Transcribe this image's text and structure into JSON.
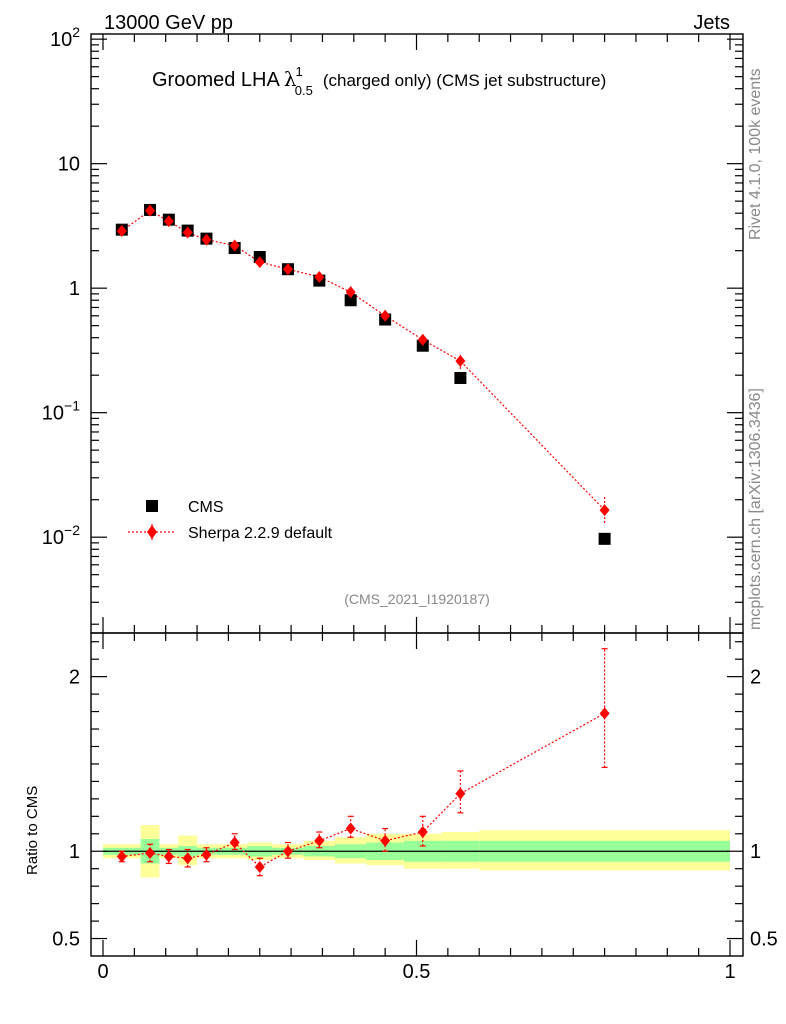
{
  "header": {
    "left": "13000 GeV pp",
    "right": "Jets"
  },
  "side_labels": {
    "rivet": "Rivet 4.1.0,  100k events",
    "mcplots": "mcplots.cern.ch [arXiv:1306.3436]"
  },
  "plot_title": {
    "main": "Groomed LHA",
    "lambda": "λ",
    "sup": "1",
    "sub": "0.5",
    "rest": "(charged only) (CMS jet substructure)"
  },
  "analysis_id": "(CMS_2021_I1920187)",
  "legend": {
    "cms": "CMS",
    "sherpa": "Sherpa 2.2.9 default"
  },
  "colors": {
    "cms": "#000000",
    "sherpa": "#ff0000",
    "band_outer": "#ffff99",
    "band_inner": "#99ff99"
  },
  "chart_data": [
    {
      "type": "scatter",
      "name": "main",
      "yscale": "log",
      "xlim": [
        -0.02,
        1.02
      ],
      "ylim": [
        0.0017,
        110
      ],
      "ytick_labels": [
        {
          "value": 100,
          "base": "10",
          "exp": "2"
        },
        {
          "value": 10,
          "base": "10",
          "exp": ""
        },
        {
          "value": 1,
          "base": "1",
          "exp": ""
        },
        {
          "value": 0.1,
          "base": "10",
          "exp": "−1"
        },
        {
          "value": 0.01,
          "base": "10",
          "exp": "−2"
        }
      ],
      "x": [
        0.03,
        0.075,
        0.105,
        0.135,
        0.165,
        0.21,
        0.25,
        0.295,
        0.345,
        0.395,
        0.45,
        0.51,
        0.57,
        0.8
      ],
      "series": [
        {
          "name": "CMS",
          "values": [
            2.95,
            4.25,
            3.55,
            2.9,
            2.5,
            2.1,
            1.78,
            1.42,
            1.15,
            0.8,
            0.56,
            0.345,
            0.19,
            0.0097
          ]
        },
        {
          "name": "Sherpa 2.2.9 default",
          "values": [
            2.88,
            4.2,
            3.45,
            2.8,
            2.45,
            2.2,
            1.62,
            1.42,
            1.23,
            0.93,
            0.6,
            0.385,
            0.26,
            0.0165
          ],
          "err_lo": [
            0.2,
            0.25,
            0.2,
            0.18,
            0.15,
            0.12,
            0.1,
            0.09,
            0.08,
            0.06,
            0.05,
            0.04,
            0.035,
            0.0035
          ],
          "err_hi": [
            0.2,
            0.25,
            0.2,
            0.18,
            0.15,
            0.12,
            0.1,
            0.09,
            0.08,
            0.06,
            0.05,
            0.04,
            0.035,
            0.0045
          ]
        }
      ]
    },
    {
      "type": "scatter",
      "name": "ratio",
      "ylabel": "Ratio to CMS",
      "xlim": [
        -0.02,
        1.02
      ],
      "ylim": [
        0.4,
        2.25
      ],
      "yticks": [
        0.5,
        1,
        2
      ],
      "ytick_labels": [
        "0.5",
        "1",
        "2"
      ],
      "xticks": [
        0,
        0.5,
        1
      ],
      "xtick_labels": [
        "0",
        "0.5",
        "1"
      ],
      "x": [
        0.03,
        0.075,
        0.105,
        0.135,
        0.165,
        0.21,
        0.25,
        0.295,
        0.345,
        0.395,
        0.45,
        0.51,
        0.57,
        0.8
      ],
      "values": [
        0.97,
        0.99,
        0.97,
        0.96,
        0.98,
        1.05,
        0.91,
        1.0,
        1.06,
        1.13,
        1.06,
        1.11,
        1.33,
        1.79
      ],
      "err_lo": [
        0.03,
        0.05,
        0.04,
        0.05,
        0.04,
        0.04,
        0.05,
        0.04,
        0.04,
        0.05,
        0.06,
        0.08,
        0.11,
        0.31
      ],
      "err_hi": [
        0.03,
        0.05,
        0.04,
        0.05,
        0.04,
        0.05,
        0.05,
        0.05,
        0.05,
        0.07,
        0.07,
        0.09,
        0.13,
        0.37
      ],
      "bands": {
        "edges": [
          0.0,
          0.06,
          0.09,
          0.12,
          0.15,
          0.18,
          0.23,
          0.27,
          0.32,
          0.37,
          0.42,
          0.48,
          0.54,
          0.6,
          1.0
        ],
        "outer_lo": [
          0.96,
          0.85,
          0.96,
          0.92,
          0.96,
          0.96,
          0.95,
          0.96,
          0.95,
          0.93,
          0.92,
          0.9,
          0.9,
          0.89
        ],
        "outer_hi": [
          1.04,
          1.15,
          1.04,
          1.09,
          1.04,
          1.04,
          1.05,
          1.04,
          1.06,
          1.08,
          1.1,
          1.1,
          1.11,
          1.12
        ],
        "inner_lo": [
          0.98,
          0.93,
          0.98,
          0.97,
          0.98,
          0.98,
          0.97,
          0.98,
          0.97,
          0.96,
          0.95,
          0.94,
          0.94,
          0.94
        ],
        "inner_hi": [
          1.02,
          1.07,
          1.02,
          1.03,
          1.02,
          1.02,
          1.03,
          1.02,
          1.03,
          1.04,
          1.05,
          1.06,
          1.06,
          1.06
        ]
      }
    }
  ]
}
